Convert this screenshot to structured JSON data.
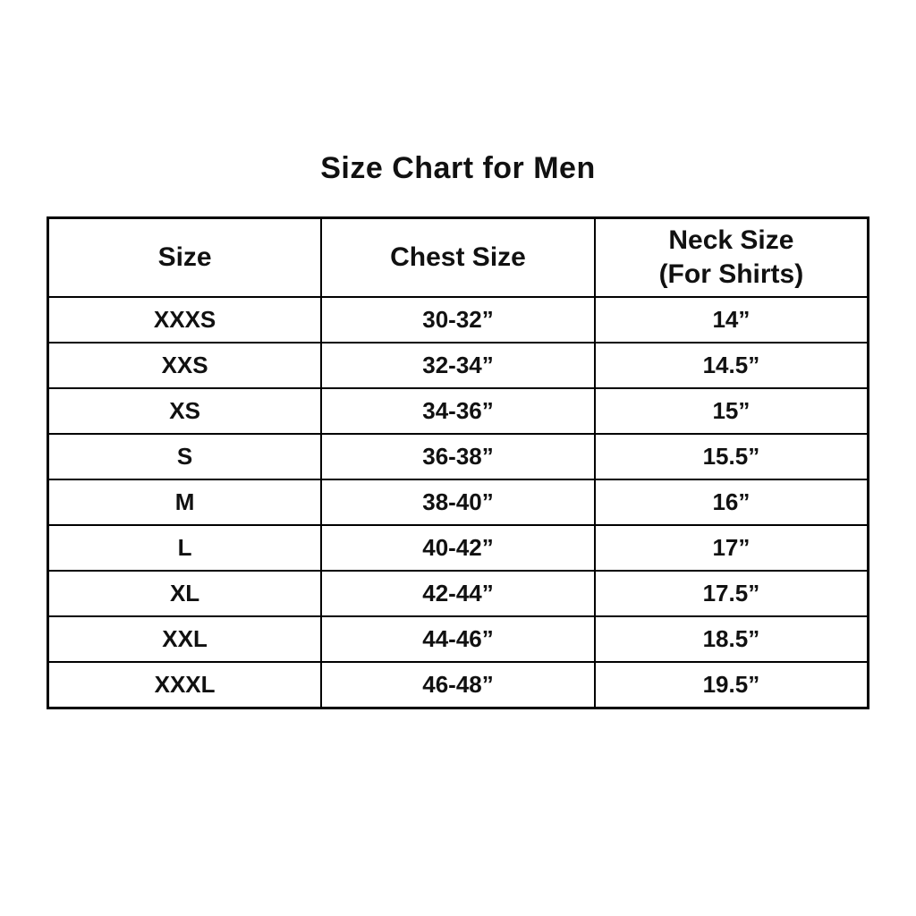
{
  "page": {
    "title": "Size Chart for Men"
  },
  "colors": {
    "background": "#ffffff",
    "text": "#111111",
    "border": "#000000"
  },
  "table": {
    "headers": [
      {
        "label": "Size",
        "sublabel": ""
      },
      {
        "label": "Chest Size",
        "sublabel": ""
      },
      {
        "label": "Neck Size",
        "sublabel": "(For Shirts)"
      }
    ]
  },
  "chart_data": {
    "type": "table",
    "title": "Size Chart for Men",
    "columns": [
      "Size",
      "Chest Size",
      "Neck Size (For Shirts)"
    ],
    "rows": [
      [
        "XXXS",
        "30-32”",
        "14”"
      ],
      [
        "XXS",
        "32-34”",
        "14.5”"
      ],
      [
        "XS",
        "34-36”",
        "15”"
      ],
      [
        "S",
        "36-38”",
        "15.5”"
      ],
      [
        "M",
        "38-40”",
        "16”"
      ],
      [
        "L",
        "40-42”",
        "17”"
      ],
      [
        "XL",
        "42-44”",
        "17.5”"
      ],
      [
        "XXL",
        "44-46”",
        "18.5”"
      ],
      [
        "XXXL",
        "46-48”",
        "19.5”"
      ]
    ]
  }
}
